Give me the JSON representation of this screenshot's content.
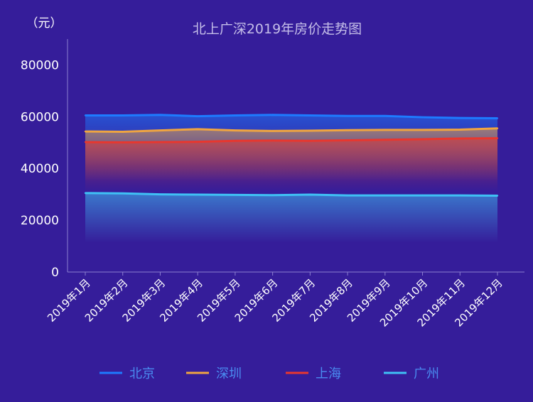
{
  "chart_data": {
    "type": "area",
    "title": "北上广深2019年房价走势图",
    "ylabel": "（元）",
    "ylim": [
      0,
      90000
    ],
    "yticks": [
      0,
      20000,
      40000,
      60000,
      80000
    ],
    "ytick_labels": [
      "0",
      "20000",
      "40000",
      "60000",
      "80000"
    ],
    "categories": [
      "2019年1月",
      "2019年2月",
      "2019年3月",
      "2019年4月",
      "2019年5月",
      "2019年6月",
      "2019年7月",
      "2019年8月",
      "2019年9月",
      "2019年10月",
      "2019年11月",
      "2019年12月"
    ],
    "grid": false,
    "legend_position": "bottom",
    "series": [
      {
        "name": "北京",
        "color": "#1e7bff",
        "values": [
          60500,
          60500,
          60700,
          60200,
          60500,
          60700,
          60500,
          60300,
          60300,
          59800,
          59500,
          59400
        ]
      },
      {
        "name": "深圳",
        "color": "#f0a540",
        "values": [
          54300,
          54200,
          54700,
          55200,
          54700,
          54500,
          54600,
          54800,
          54900,
          54900,
          55000,
          55500
        ]
      },
      {
        "name": "上海",
        "color": "#e8372e",
        "values": [
          50200,
          50100,
          50200,
          50300,
          50700,
          50800,
          50700,
          50900,
          51100,
          51300,
          51600,
          51700
        ]
      },
      {
        "name": "广州",
        "color": "#3fc1f5",
        "values": [
          30500,
          30400,
          30000,
          29900,
          29800,
          29700,
          29900,
          29600,
          29600,
          29600,
          29600,
          29500
        ]
      }
    ]
  }
}
